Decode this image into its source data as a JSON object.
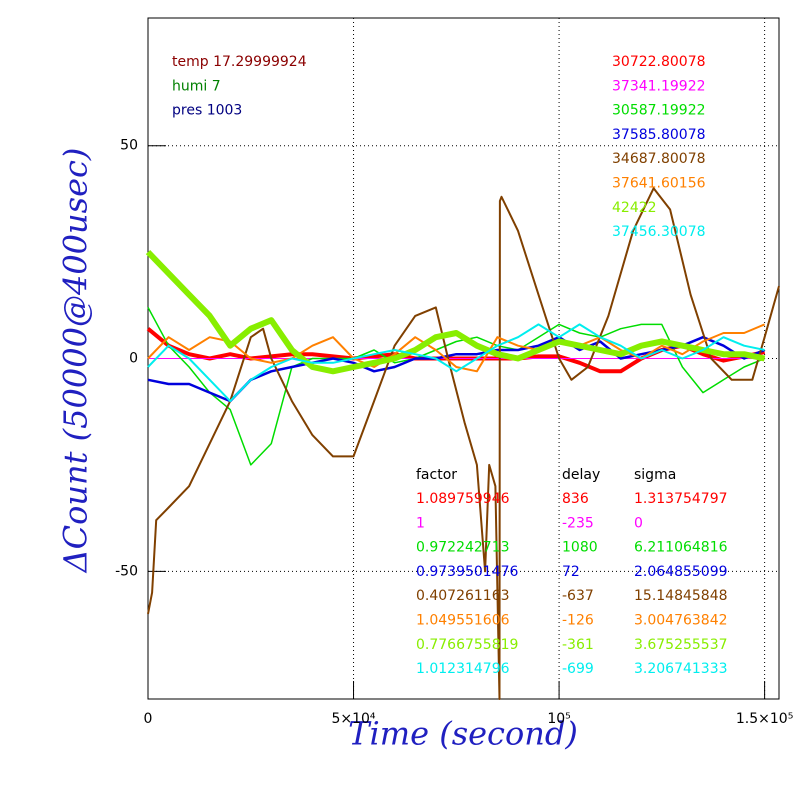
{
  "chart_data": {
    "type": "line",
    "xlabel": "Time (second)",
    "ylabel": "ΔCount (50000@400usec)",
    "xlim": [
      0,
      153500
    ],
    "ylim": [
      -80,
      80
    ],
    "xticks": [
      0,
      {
        "value": 50000,
        "label": "5×10⁴"
      },
      {
        "value": 100000,
        "label": "10⁵"
      },
      {
        "value": 150000,
        "label": "1.5×10⁵"
      }
    ],
    "yticks": [
      -50,
      0,
      50
    ],
    "grid": true,
    "x": [
      0,
      5000,
      10000,
      15000,
      20000,
      25000,
      30000,
      35000,
      40000,
      45000,
      50000,
      55000,
      60000,
      65000,
      70000,
      75000,
      80000,
      85000,
      90000,
      95000,
      100000,
      105000,
      110000,
      115000,
      120000,
      125000,
      130000,
      135000,
      140000,
      145000,
      150000
    ],
    "annotations": [
      {
        "text": "temp 17.29999924",
        "color": "#8b0000"
      },
      {
        "text": "humi 7",
        "color": "#008000"
      },
      {
        "text": "pres 1003",
        "color": "#000080"
      }
    ],
    "table_headers": [
      "factor",
      "delay",
      "sigma"
    ],
    "series": [
      {
        "color": "#ff0000",
        "width": 4,
        "stat": 30722.80078,
        "factor": 1.089759946,
        "delay": 836,
        "sigma": 1.313754797,
        "values": [
          7,
          3,
          1,
          0,
          1,
          0,
          0.5,
          1,
          1,
          0.5,
          0,
          0.5,
          1,
          0,
          0,
          0,
          0,
          0,
          0,
          0.5,
          0.5,
          -1,
          -3,
          -3,
          0,
          2,
          3,
          1,
          -0.5,
          0.5,
          1.5
        ]
      },
      {
        "color": "#ff00ff",
        "width": 1,
        "stat": 37341.19922,
        "factor": 1,
        "delay": -235,
        "sigma": 0,
        "values": [
          0,
          0,
          0,
          0,
          0,
          0,
          0,
          0,
          0,
          0,
          0,
          0,
          0,
          0,
          0,
          0,
          0,
          0,
          0,
          0,
          0,
          0,
          0,
          0,
          0,
          0,
          0,
          0,
          0,
          0,
          0
        ]
      },
      {
        "color": "#00dd00",
        "width": 1.5,
        "stat": 30587.19922,
        "factor": 0.972242713,
        "delay": 1080,
        "sigma": 6.211064816,
        "values": [
          12,
          3,
          -2,
          -8,
          -12,
          -25,
          -20,
          -2,
          0,
          0,
          0,
          2,
          -1,
          0,
          2,
          4,
          5,
          3,
          2,
          5,
          8,
          6,
          5,
          7,
          8,
          8,
          -2,
          -8,
          -5,
          -2,
          0
        ]
      },
      {
        "color": "#0000dd",
        "width": 2.5,
        "stat": 37585.80078,
        "factor": 0.9739501476,
        "delay": 72,
        "sigma": 2.064855099,
        "values": [
          -5,
          -6,
          -6,
          -8,
          -10,
          -5,
          -3,
          -2,
          -1,
          0,
          -1,
          -3,
          -2,
          0,
          0,
          1,
          1,
          2,
          2,
          3,
          5,
          2,
          4,
          0,
          1,
          2,
          3,
          5,
          3,
          0,
          2
        ]
      },
      {
        "color": "#804000",
        "width": 2,
        "stat": 34687.80078,
        "factor": 0.407261163,
        "delay": -637,
        "sigma": 15.14845848,
        "x": [
          0,
          1000,
          2000,
          5000,
          10000,
          15000,
          20000,
          25000,
          28000,
          30000,
          35000,
          40000,
          45000,
          50000,
          55000,
          60000,
          65000,
          70000,
          73000,
          77000,
          80000,
          82000,
          83000,
          84500,
          85500,
          85600,
          86000,
          90000,
          95000,
          100000,
          103000,
          107000,
          112000,
          118000,
          123000,
          127000,
          132000,
          137000,
          142000,
          147000,
          150000,
          153500
        ],
        "values": [
          -60,
          -55,
          -38,
          -35,
          -30,
          -20,
          -10,
          5,
          7,
          0,
          -10,
          -18,
          -23,
          -23,
          -10,
          3,
          10,
          12,
          0,
          -15,
          -25,
          -50,
          -25,
          -30,
          -80,
          37,
          38,
          30,
          15,
          0,
          -5,
          -2,
          10,
          30,
          40,
          35,
          15,
          0,
          -5,
          -5,
          5,
          17
        ]
      },
      {
        "color": "#ff8000",
        "width": 2,
        "stat": 37641.60156,
        "factor": 1.049551606,
        "delay": -126,
        "sigma": 3.004763842,
        "values": [
          0,
          5,
          2,
          5,
          4,
          0,
          -1,
          0,
          3,
          5,
          0,
          -2,
          1,
          5,
          2,
          -2,
          -3,
          5,
          3,
          2,
          4,
          3,
          5,
          2,
          0,
          3,
          1,
          4,
          6,
          6,
          8
        ]
      },
      {
        "color": "#88ee00",
        "width": 6,
        "stat": 42422,
        "factor": 0.7766755819,
        "delay": -361,
        "sigma": 3.675255537,
        "values": [
          25,
          20,
          15,
          10,
          3,
          7,
          9,
          2,
          -2,
          -3,
          -2,
          -1,
          0,
          2,
          5,
          6,
          3,
          1,
          0,
          2,
          4,
          3,
          2,
          1,
          3,
          4,
          3,
          2,
          1,
          1,
          0
        ]
      },
      {
        "color": "#00eeee",
        "width": 2,
        "stat": 37456.30078,
        "factor": 1.012314796,
        "delay": -699,
        "sigma": 3.206741333,
        "values": [
          -2,
          3,
          0,
          -5,
          -10,
          -5,
          -2,
          0,
          -1,
          -1,
          0,
          1,
          2,
          1,
          0,
          -3,
          0,
          3,
          5,
          8,
          5,
          8,
          5,
          3,
          0,
          2,
          0,
          2,
          5,
          3,
          2
        ]
      }
    ]
  }
}
